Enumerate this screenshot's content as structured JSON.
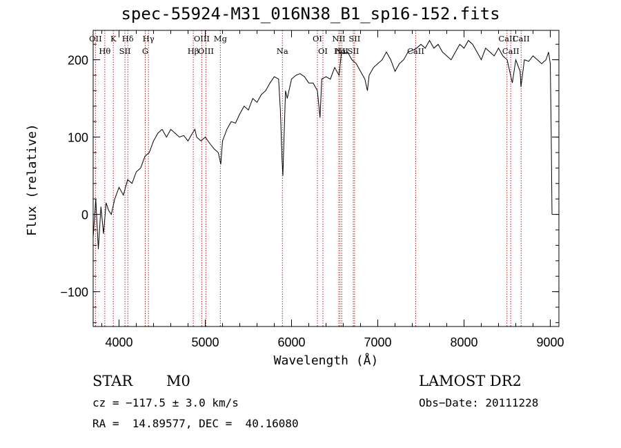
{
  "header": {
    "title": "spec-55924-M31_016N38_B1_sp16-152.fits"
  },
  "footer": {
    "classification": "STAR",
    "subclass": "M0",
    "survey": "LAMOST DR2",
    "redshift_line": "cz = −117.5 ± 3.0 km/s",
    "obs_date": "Obs−Date: 20111228",
    "coords_line": "RA =  14.89577, DEC =  40.16080"
  },
  "colors": {
    "line_marker": "#b22222",
    "spectrum": "#000000",
    "axes": "#000000",
    "background": "#ffffff"
  },
  "chart_data": {
    "type": "line",
    "title": "spec-55924-M31_016N38_B1_sp16-152.fits",
    "xlabel": "Wavelength (Å)",
    "ylabel": "Flux (relative)",
    "xlim": [
      3700,
      9100
    ],
    "ylim": [
      -145,
      238
    ],
    "x_ticks": [
      4000,
      5000,
      6000,
      7000,
      8000,
      9000
    ],
    "y_ticks": [
      -100,
      0,
      100,
      200
    ],
    "x_minor_step": 200,
    "y_minor_step": 20,
    "grid": false,
    "series": [
      {
        "x": [
          3700,
          3730,
          3760,
          3790,
          3820,
          3850,
          3880,
          3910,
          3950,
          4000,
          4050,
          4100,
          4150,
          4200,
          4250,
          4300,
          4350,
          4400,
          4450,
          4500,
          4550,
          4600,
          4650,
          4700,
          4750,
          4800,
          4850,
          4880,
          4900,
          4950,
          5000,
          5050,
          5100,
          5150,
          5180,
          5200,
          5250,
          5300,
          5350,
          5400,
          5450,
          5500,
          5550,
          5600,
          5650,
          5700,
          5750,
          5800,
          5850,
          5870,
          5890,
          5900,
          5910,
          5930,
          5950,
          6000,
          6050,
          6100,
          6150,
          6200,
          6250,
          6300,
          6330,
          6350,
          6400,
          6450,
          6500,
          6550,
          6580,
          6600,
          6650,
          6700,
          6750,
          6800,
          6850,
          6880,
          6900,
          6950,
          7000,
          7050,
          7100,
          7150,
          7200,
          7250,
          7300,
          7350,
          7400,
          7450,
          7500,
          7550,
          7600,
          7650,
          7700,
          7750,
          7800,
          7850,
          7900,
          7950,
          8000,
          8050,
          8100,
          8150,
          8200,
          8250,
          8300,
          8350,
          8400,
          8450,
          8500,
          8540,
          8560,
          8600,
          8650,
          8660,
          8700,
          8750,
          8800,
          8850,
          8900,
          8950,
          8980,
          9000,
          9010,
          9020
        ],
        "values": [
          -30,
          20,
          -45,
          10,
          -25,
          15,
          5,
          0,
          20,
          35,
          25,
          45,
          40,
          55,
          60,
          75,
          80,
          95,
          105,
          110,
          100,
          110,
          105,
          100,
          102,
          95,
          105,
          110,
          100,
          95,
          100,
          92,
          85,
          80,
          65,
          95,
          110,
          120,
          118,
          130,
          140,
          135,
          150,
          145,
          155,
          160,
          170,
          178,
          175,
          135,
          70,
          50,
          90,
          160,
          150,
          175,
          180,
          182,
          178,
          170,
          170,
          160,
          125,
          175,
          178,
          175,
          190,
          180,
          210,
          208,
          210,
          200,
          195,
          185,
          175,
          160,
          180,
          190,
          195,
          200,
          210,
          200,
          185,
          195,
          200,
          210,
          212,
          215,
          220,
          215,
          225,
          215,
          220,
          210,
          205,
          200,
          210,
          220,
          215,
          225,
          220,
          210,
          200,
          215,
          210,
          205,
          215,
          205,
          200,
          180,
          170,
          200,
          185,
          165,
          200,
          198,
          205,
          200,
          195,
          200,
          210,
          195,
          110,
          0
        ]
      }
    ],
    "line_markers": [
      {
        "wavelength": 3727,
        "label": "OII"
      },
      {
        "wavelength": 3835,
        "label": "Hθ"
      },
      {
        "wavelength": 3934,
        "label": "K"
      },
      {
        "wavelength": 4069,
        "label": "SII"
      },
      {
        "wavelength": 4102,
        "label": "Hδ"
      },
      {
        "wavelength": 4304,
        "label": "G"
      },
      {
        "wavelength": 4341,
        "label": "Hγ"
      },
      {
        "wavelength": 4861,
        "label": "Hβ"
      },
      {
        "wavelength": 4959,
        "label": "OIII"
      },
      {
        "wavelength": 5007,
        "label": "OIII"
      },
      {
        "wavelength": 5175,
        "label": "Mg"
      },
      {
        "wavelength": 5894,
        "label": "Na"
      },
      {
        "wavelength": 6300,
        "label": "OI"
      },
      {
        "wavelength": 6364,
        "label": "OI"
      },
      {
        "wavelength": 6548,
        "label": "NII"
      },
      {
        "wavelength": 6563,
        "label": "Hα"
      },
      {
        "wavelength": 6583,
        "label": "NII"
      },
      {
        "wavelength": 6716,
        "label": "SII"
      },
      {
        "wavelength": 6731,
        "label": "SII"
      },
      {
        "wavelength": 7440,
        "label": "CaII"
      },
      {
        "wavelength": 8498,
        "label": "CaII"
      },
      {
        "wavelength": 8542,
        "label": "CaII"
      },
      {
        "wavelength": 8662,
        "label": "CaII"
      }
    ]
  }
}
